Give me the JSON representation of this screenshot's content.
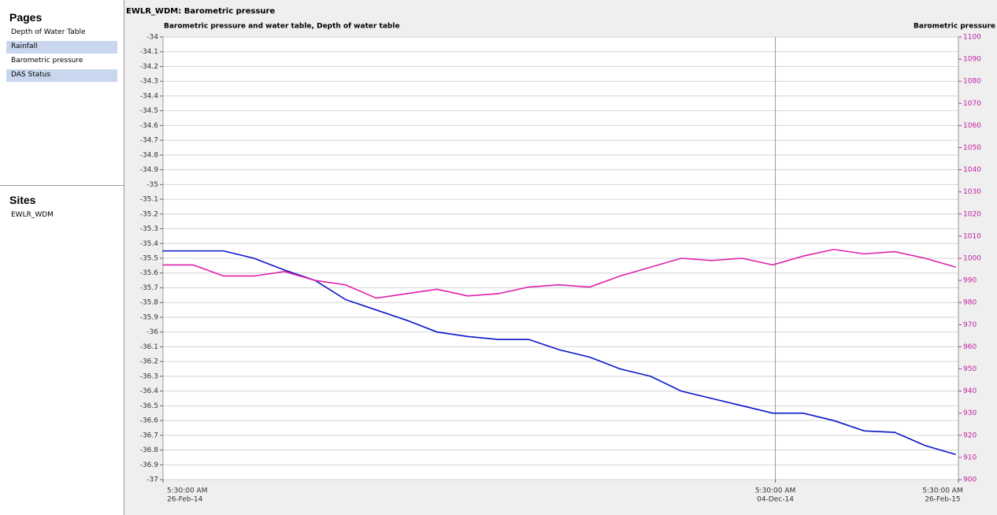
{
  "sidebar": {
    "pages_title": "Pages",
    "pages": [
      {
        "label": "Depth of Water Table",
        "highlight": false
      },
      {
        "label": "Rainfall",
        "highlight": true
      },
      {
        "label": "Barometric pressure",
        "highlight": false
      },
      {
        "label": "DAS Status",
        "highlight": true
      }
    ],
    "sites_title": "Sites",
    "sites": [
      "EWLR_WDM"
    ]
  },
  "window_title": "EWLR_WDM: Barometric pressure",
  "chart_data": {
    "type": "line",
    "title": "Barometric pressure and water table, Depth of water table",
    "y2_label": "Barometric pressure",
    "x": [
      "2014-02-26",
      "2014-03-12",
      "2014-03-26",
      "2014-04-09",
      "2014-04-23",
      "2014-05-07",
      "2014-05-21",
      "2014-06-04",
      "2014-06-18",
      "2014-07-02",
      "2014-07-16",
      "2014-07-30",
      "2014-08-13",
      "2014-08-27",
      "2014-09-10",
      "2014-09-24",
      "2014-10-08",
      "2014-10-22",
      "2014-11-05",
      "2014-11-19",
      "2014-12-03",
      "2014-12-17",
      "2014-12-31",
      "2015-01-14",
      "2015-01-28",
      "2015-02-11",
      "2015-02-25"
    ],
    "xlim": [
      "2014-02-26 05:30",
      "2015-02-26 05:30"
    ],
    "xticks": [
      {
        "value": "2014-02-26 05:30",
        "label": [
          "5:30:00 AM",
          "26-Feb-14"
        ]
      },
      {
        "value": "2014-12-04 05:30",
        "label": [
          "5:30:00 AM",
          "04-Dec-14"
        ]
      },
      {
        "value": "2015-02-26 05:30",
        "label": [
          "5:30:00 AM",
          "26-Feb-15"
        ]
      }
    ],
    "ylim": [
      -37,
      -34
    ],
    "yticks": [
      -34,
      -34.1,
      -34.2,
      -34.3,
      -34.4,
      -34.5,
      -34.6,
      -34.7,
      -34.8,
      -34.9,
      -35,
      -35.1,
      -35.2,
      -35.3,
      -35.4,
      -35.5,
      -35.6,
      -35.7,
      -35.8,
      -35.9,
      -36,
      -36.1,
      -36.2,
      -36.3,
      -36.4,
      -36.5,
      -36.6,
      -36.7,
      -36.8,
      -36.9,
      -37
    ],
    "y2lim": [
      900,
      1100
    ],
    "y2ticks": [
      900,
      910,
      920,
      930,
      940,
      950,
      960,
      970,
      980,
      990,
      1000,
      1010,
      1020,
      1030,
      1040,
      1050,
      1060,
      1070,
      1080,
      1090,
      1100
    ],
    "grid": true,
    "series": [
      {
        "color": "#0a14c8",
        "axis": "y",
        "values": [
          -35.45,
          -35.45,
          -35.45,
          -35.5,
          -35.58,
          -35.65,
          -35.78,
          -35.85,
          -35.92,
          -36.0,
          -36.03,
          -36.05,
          -36.05,
          -36.12,
          -36.17,
          -36.25,
          -36.3,
          -36.4,
          -36.45,
          -36.5,
          -36.55,
          -36.55,
          -36.6,
          -36.67,
          -36.68,
          -36.77,
          -36.83
        ]
      },
      {
        "color": "#e020a8",
        "axis": "y2",
        "values": [
          997,
          997,
          992,
          992,
          994,
          990,
          988,
          982,
          984,
          986,
          983,
          984,
          987,
          988,
          987,
          992,
          996,
          1000,
          999,
          1000,
          997,
          1001,
          1004,
          1002,
          1003,
          1000,
          996
        ]
      }
    ]
  }
}
